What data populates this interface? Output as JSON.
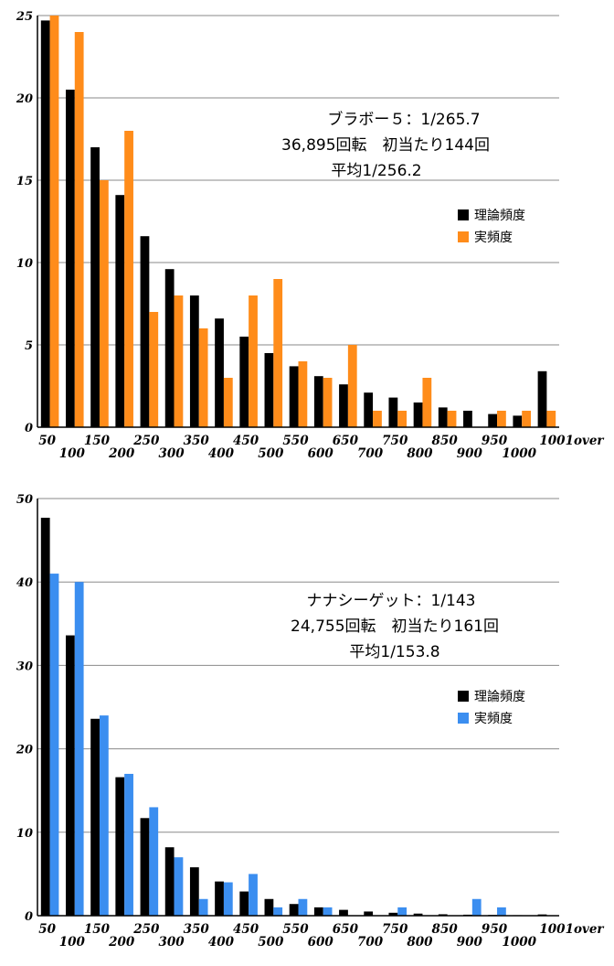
{
  "chart_data": [
    {
      "type": "bar",
      "categories": [
        "50",
        "100",
        "150",
        "200",
        "250",
        "300",
        "350",
        "400",
        "450",
        "500",
        "550",
        "600",
        "650",
        "700",
        "750",
        "800",
        "850",
        "900",
        "950",
        "1000",
        "1001over"
      ],
      "series": [
        {
          "name": "理論頻度",
          "color": "#000000",
          "values": [
            24.7,
            20.5,
            17.0,
            14.1,
            11.6,
            9.6,
            8.0,
            6.6,
            5.5,
            4.5,
            3.7,
            3.1,
            2.6,
            2.1,
            1.8,
            1.5,
            1.2,
            1.0,
            0.8,
            0.7,
            3.4
          ]
        },
        {
          "name": "実頻度",
          "color": "#ff8c1a",
          "values": [
            25,
            24,
            15,
            18,
            7,
            8,
            6,
            3,
            8,
            9,
            4,
            3,
            5,
            1,
            1,
            3,
            1,
            0,
            1,
            1,
            1
          ]
        }
      ],
      "ylim": [
        0,
        25
      ],
      "yticks": [
        0,
        5,
        10,
        15,
        20,
        25
      ],
      "annotation": [
        "ブラボー５：1/265.7",
        "36,895回転　初当たり144回",
        "平均1/256.2"
      ],
      "legend_position": "right",
      "grid": true
    },
    {
      "type": "bar",
      "categories": [
        "50",
        "100",
        "150",
        "200",
        "250",
        "300",
        "350",
        "400",
        "450",
        "500",
        "550",
        "600",
        "650",
        "700",
        "750",
        "800",
        "850",
        "900",
        "950",
        "1000",
        "1001over"
      ],
      "series": [
        {
          "name": "理論頻度",
          "color": "#000000",
          "values": [
            47.7,
            33.6,
            23.6,
            16.6,
            11.7,
            8.2,
            5.8,
            4.1,
            2.9,
            2.0,
            1.4,
            1.0,
            0.7,
            0.5,
            0.35,
            0.25,
            0.17,
            0.12,
            0.09,
            0.06,
            0.15
          ]
        },
        {
          "name": "実頻度",
          "color": "#3b8ef0",
          "values": [
            41,
            40,
            24,
            17,
            13,
            7,
            2,
            4,
            5,
            1,
            2,
            1,
            0,
            0,
            1,
            0,
            0,
            2,
            1,
            0,
            0
          ]
        }
      ],
      "ylim": [
        0,
        50
      ],
      "yticks": [
        0,
        10,
        20,
        30,
        40,
        50
      ],
      "annotation": [
        "ナナシーゲット：1/143",
        "24,755回転　初当たり161回",
        "平均1/153.8"
      ],
      "legend_position": "right",
      "grid": true
    }
  ]
}
